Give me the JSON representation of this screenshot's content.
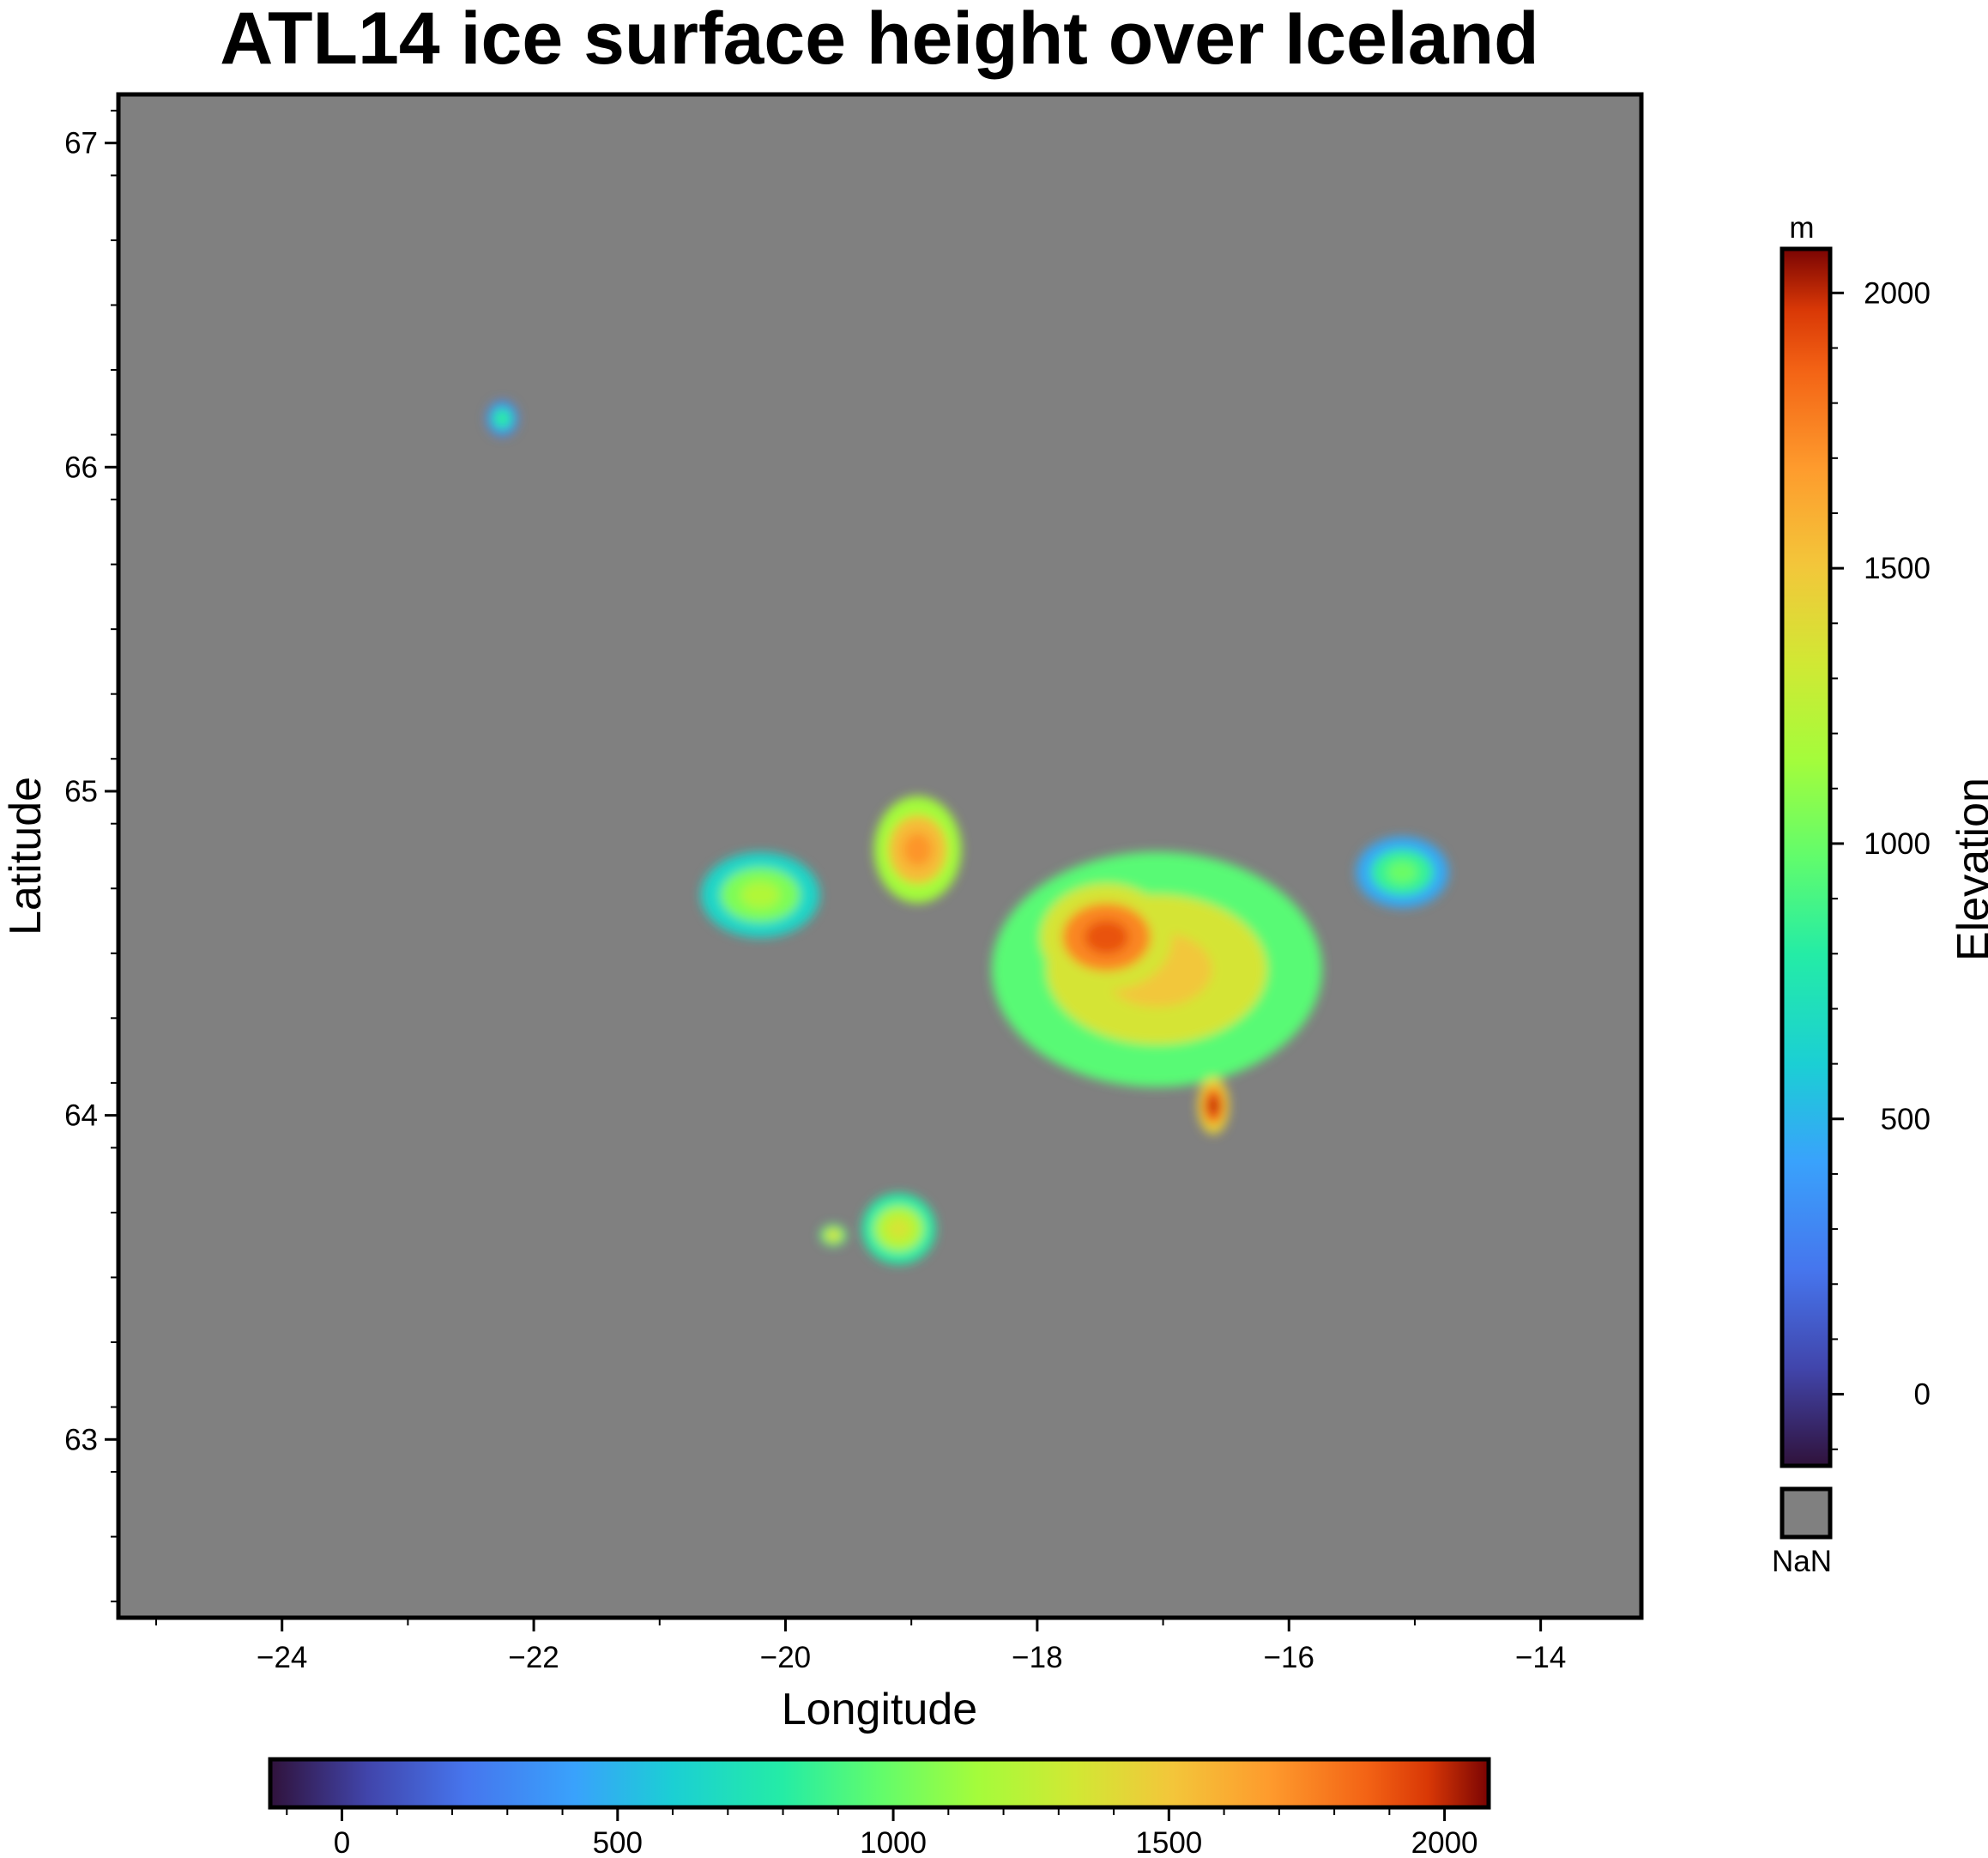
{
  "title": "ATL14 ice surface height over Iceland",
  "chart_data": {
    "type": "heatmap",
    "title": "ATL14 ice surface height over Iceland",
    "xlabel": "Longitude",
    "ylabel": "Latitude",
    "xlim": [
      -25.3,
      -13.2
    ],
    "ylim": [
      62.45,
      67.15
    ],
    "xticks": [
      -24,
      -22,
      -20,
      -18,
      -16,
      -14
    ],
    "xtick_labels": [
      "−24",
      "−22",
      "−20",
      "−18",
      "−16",
      "−14"
    ],
    "yticks": [
      63,
      64,
      65,
      66,
      67
    ],
    "ytick_labels": [
      "63",
      "64",
      "65",
      "66",
      "67"
    ],
    "nan_color": "#808080",
    "colormap": "turbo",
    "z_range": [
      -130,
      2080
    ],
    "ice_caps": [
      {
        "lon": -17.05,
        "lat": 64.45,
        "rx": 1.25,
        "ry": 0.33,
        "elevation": 1500
      },
      {
        "lon": -17.45,
        "lat": 64.55,
        "rx": 0.5,
        "ry": 0.15,
        "elevation": 1900
      },
      {
        "lon": -16.6,
        "lat": 64.03,
        "rx": 0.12,
        "ry": 0.08,
        "elevation": 2000
      },
      {
        "lon": -18.95,
        "lat": 64.82,
        "rx": 0.33,
        "ry": 0.15,
        "elevation": 1700
      },
      {
        "lon": -20.2,
        "lat": 64.68,
        "rx": 0.45,
        "ry": 0.12,
        "elevation": 1200
      },
      {
        "lon": -19.1,
        "lat": 63.65,
        "rx": 0.28,
        "ry": 0.1,
        "elevation": 1350
      },
      {
        "lon": -22.25,
        "lat": 66.15,
        "rx": 0.12,
        "ry": 0.05,
        "elevation": 850
      },
      {
        "lon": -19.62,
        "lat": 63.63,
        "rx": 0.1,
        "ry": 0.03,
        "elevation": 1450
      },
      {
        "lon": -15.1,
        "lat": 64.75,
        "rx": 0.35,
        "ry": 0.1,
        "elevation": 1000
      }
    ],
    "colorbar_right": {
      "unit": "m",
      "label": "Elevation",
      "ticks": [
        0,
        500,
        1000,
        1500,
        2000
      ],
      "tick_labels": [
        "0",
        "500",
        "1000",
        "1500",
        "2000"
      ],
      "nan_label": "NaN"
    },
    "colorbar_bottom": {
      "ticks": [
        0,
        500,
        1000,
        1500,
        2000
      ],
      "tick_labels": [
        "0",
        "500",
        "1000",
        "1500",
        "2000"
      ]
    }
  }
}
